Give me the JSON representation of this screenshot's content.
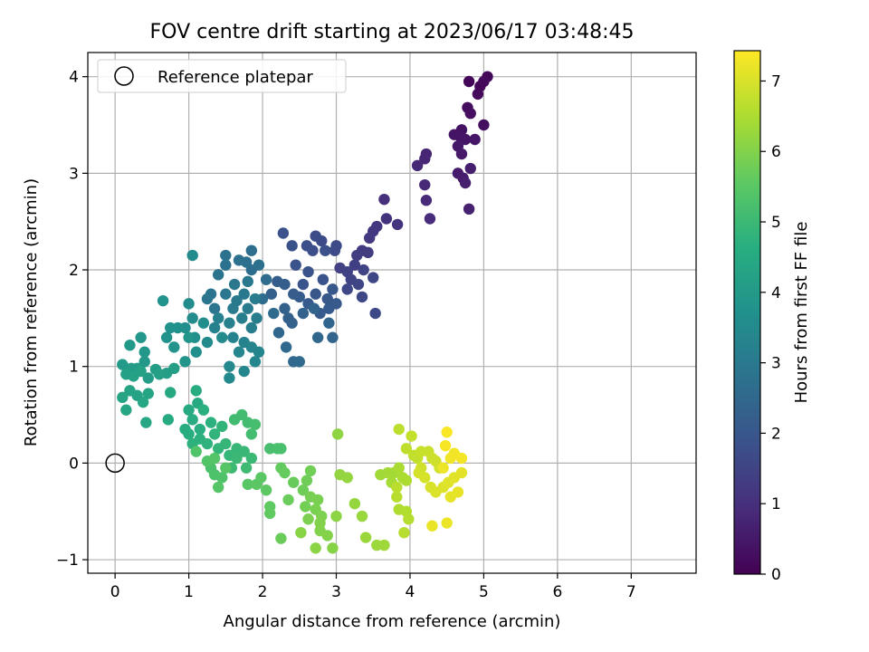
{
  "chart_data": {
    "type": "scatter",
    "title": "FOV centre drift starting at 2023/06/17 03:48:45",
    "xlabel": "Angular distance from reference (arcmin)",
    "ylabel": "Rotation from reference (arcmin)",
    "xlim": [
      -0.37,
      7.88
    ],
    "ylim": [
      -1.14,
      4.25
    ],
    "xticks": [
      0,
      1,
      2,
      3,
      4,
      5,
      6,
      7
    ],
    "yticks": [
      -1,
      0,
      1,
      2,
      3,
      4
    ],
    "grid": true,
    "legend": {
      "location": "top-left",
      "entries": [
        "Reference platepar"
      ]
    },
    "reference_point": {
      "x": 0,
      "y": 0
    },
    "colorbar": {
      "label": "Hours from first FF file",
      "colormap": "viridis",
      "range": [
        0,
        7.43
      ],
      "ticks": [
        0,
        1,
        2,
        3,
        4,
        5,
        6,
        7
      ]
    },
    "points": [
      [
        4.8,
        3.95,
        0.1
      ],
      [
        4.95,
        3.9,
        0.12
      ],
      [
        5.05,
        4.0,
        0.15
      ],
      [
        5.0,
        3.95,
        0.18
      ],
      [
        4.92,
        3.82,
        0.2
      ],
      [
        4.78,
        3.68,
        0.25
      ],
      [
        4.82,
        3.62,
        0.28
      ],
      [
        5.0,
        3.5,
        0.3
      ],
      [
        4.7,
        3.45,
        0.35
      ],
      [
        4.68,
        3.38,
        0.38
      ],
      [
        4.6,
        3.4,
        0.4
      ],
      [
        4.75,
        3.35,
        0.42
      ],
      [
        4.88,
        3.35,
        0.45
      ],
      [
        4.65,
        3.28,
        0.48
      ],
      [
        4.7,
        3.2,
        0.5
      ],
      [
        4.65,
        3.0,
        0.55
      ],
      [
        4.72,
        2.95,
        0.6
      ],
      [
        4.82,
        3.05,
        0.62
      ],
      [
        4.75,
        2.9,
        0.65
      ],
      [
        4.8,
        2.63,
        0.7
      ],
      [
        4.22,
        3.2,
        0.75
      ],
      [
        4.2,
        3.15,
        0.78
      ],
      [
        4.1,
        3.08,
        0.82
      ],
      [
        4.2,
        2.88,
        0.85
      ],
      [
        4.22,
        2.72,
        0.88
      ],
      [
        4.27,
        2.53,
        0.92
      ],
      [
        3.65,
        2.73,
        1.0
      ],
      [
        3.68,
        2.53,
        1.05
      ],
      [
        3.83,
        2.47,
        1.1
      ],
      [
        3.55,
        2.45,
        1.15
      ],
      [
        3.5,
        2.4,
        1.2
      ],
      [
        3.45,
        2.33,
        1.25
      ],
      [
        3.35,
        2.2,
        1.28
      ],
      [
        3.43,
        2.18,
        1.3
      ],
      [
        3.28,
        2.15,
        1.35
      ],
      [
        3.25,
        2.05,
        1.38
      ],
      [
        3.05,
        2.02,
        1.42
      ],
      [
        3.15,
        1.98,
        1.45
      ],
      [
        3.37,
        2.0,
        1.48
      ],
      [
        3.2,
        1.9,
        1.5
      ],
      [
        3.3,
        1.85,
        1.52
      ],
      [
        3.5,
        1.92,
        1.55
      ],
      [
        3.15,
        1.8,
        1.58
      ],
      [
        3.35,
        1.72,
        1.6
      ],
      [
        3.53,
        1.55,
        1.62
      ],
      [
        3.0,
        2.25,
        1.65
      ],
      [
        2.98,
        2.2,
        1.68
      ],
      [
        2.8,
        2.3,
        1.7
      ],
      [
        2.72,
        2.35,
        1.72
      ],
      [
        2.6,
        2.25,
        1.75
      ],
      [
        2.68,
        2.2,
        1.78
      ],
      [
        2.85,
        2.2,
        1.8
      ],
      [
        2.4,
        2.25,
        1.82
      ],
      [
        2.28,
        2.38,
        1.85
      ],
      [
        2.45,
        2.05,
        1.88
      ],
      [
        2.82,
        1.9,
        1.9
      ],
      [
        2.62,
        1.98,
        1.92
      ],
      [
        2.55,
        1.85,
        1.95
      ],
      [
        2.72,
        1.75,
        1.98
      ],
      [
        2.95,
        1.8,
        2.0
      ],
      [
        2.88,
        1.7,
        2.02
      ],
      [
        3.0,
        1.65,
        2.05
      ],
      [
        2.9,
        1.6,
        2.08
      ],
      [
        2.78,
        1.55,
        2.1
      ],
      [
        2.62,
        1.65,
        2.12
      ],
      [
        2.5,
        1.72,
        2.15
      ],
      [
        2.42,
        1.75,
        2.18
      ],
      [
        2.3,
        1.85,
        2.2
      ],
      [
        2.2,
        1.88,
        2.22
      ],
      [
        2.12,
        1.75,
        2.25
      ],
      [
        2.3,
        1.6,
        2.28
      ],
      [
        2.35,
        1.5,
        2.3
      ],
      [
        2.4,
        1.45,
        2.32
      ],
      [
        2.55,
        1.55,
        2.35
      ],
      [
        2.7,
        1.6,
        2.38
      ],
      [
        2.9,
        1.45,
        2.4
      ],
      [
        2.95,
        1.3,
        2.42
      ],
      [
        2.75,
        1.3,
        2.45
      ],
      [
        2.22,
        1.35,
        2.48
      ],
      [
        2.32,
        1.2,
        2.5
      ],
      [
        2.42,
        1.05,
        2.52
      ],
      [
        2.5,
        1.05,
        2.55
      ],
      [
        2.15,
        1.55,
        2.58
      ],
      [
        2.0,
        1.7,
        2.6
      ],
      [
        2.05,
        1.9,
        2.62
      ],
      [
        1.85,
        2.0,
        2.65
      ],
      [
        1.85,
        2.2,
        2.68
      ],
      [
        1.78,
        2.08,
        2.7
      ],
      [
        1.95,
        2.05,
        2.72
      ],
      [
        1.68,
        2.1,
        2.75
      ],
      [
        1.5,
        2.05,
        2.78
      ],
      [
        1.5,
        2.15,
        2.8
      ],
      [
        1.4,
        1.95,
        2.82
      ],
      [
        1.3,
        1.75,
        2.85
      ],
      [
        1.25,
        1.7,
        2.88
      ],
      [
        1.35,
        1.6,
        2.9
      ],
      [
        1.5,
        1.75,
        2.92
      ],
      [
        1.62,
        1.85,
        2.95
      ],
      [
        1.8,
        1.88,
        2.98
      ],
      [
        1.75,
        1.75,
        3.0
      ],
      [
        1.65,
        1.68,
        3.02
      ],
      [
        1.6,
        1.6,
        3.05
      ],
      [
        1.8,
        1.6,
        3.08
      ],
      [
        1.9,
        1.7,
        3.1
      ],
      [
        1.92,
        1.5,
        3.12
      ],
      [
        1.85,
        1.4,
        3.15
      ],
      [
        1.72,
        1.5,
        3.18
      ],
      [
        1.55,
        1.45,
        3.2
      ],
      [
        1.4,
        1.5,
        3.22
      ],
      [
        1.35,
        1.4,
        3.25
      ],
      [
        1.6,
        1.3,
        3.28
      ],
      [
        1.75,
        1.25,
        3.3
      ],
      [
        1.85,
        1.2,
        3.32
      ],
      [
        1.95,
        1.15,
        3.35
      ],
      [
        1.9,
        1.05,
        3.38
      ],
      [
        1.68,
        1.15,
        3.4
      ],
      [
        1.75,
        0.95,
        3.42
      ],
      [
        1.55,
        1.0,
        3.45
      ],
      [
        1.55,
        0.88,
        3.48
      ],
      [
        1.45,
        1.3,
        3.5
      ],
      [
        1.25,
        1.25,
        3.52
      ],
      [
        1.05,
        2.15,
        3.55
      ],
      [
        1.0,
        1.65,
        3.58
      ],
      [
        1.05,
        1.5,
        3.6
      ],
      [
        1.2,
        1.45,
        3.62
      ],
      [
        0.95,
        1.4,
        3.65
      ],
      [
        1.08,
        1.3,
        3.68
      ],
      [
        1.1,
        1.15,
        3.7
      ],
      [
        0.85,
        1.4,
        3.72
      ],
      [
        0.75,
        1.4,
        3.75
      ],
      [
        0.7,
        1.3,
        3.78
      ],
      [
        0.65,
        1.68,
        3.8
      ],
      [
        0.8,
        1.2,
        3.82
      ],
      [
        0.95,
        1.05,
        3.85
      ],
      [
        1.0,
        1.3,
        3.88
      ],
      [
        0.35,
        1.3,
        3.9
      ],
      [
        0.4,
        1.15,
        3.92
      ],
      [
        0.4,
        1.05,
        3.95
      ],
      [
        0.2,
        1.22,
        3.98
      ],
      [
        0.1,
        1.02,
        4.0
      ],
      [
        0.22,
        0.98,
        4.02
      ],
      [
        0.3,
        0.98,
        4.05
      ],
      [
        0.45,
        0.88,
        4.08
      ],
      [
        0.55,
        0.97,
        4.1
      ],
      [
        0.7,
        0.93,
        4.12
      ],
      [
        0.8,
        0.98,
        4.15
      ],
      [
        0.6,
        0.92,
        4.18
      ],
      [
        0.15,
        0.92,
        4.2
      ],
      [
        0.25,
        0.9,
        4.22
      ],
      [
        0.35,
        0.95,
        4.25
      ],
      [
        0.2,
        0.75,
        4.28
      ],
      [
        0.3,
        0.7,
        4.3
      ],
      [
        0.1,
        0.68,
        4.32
      ],
      [
        0.45,
        0.72,
        4.35
      ],
      [
        0.38,
        0.63,
        4.38
      ],
      [
        0.15,
        0.55,
        4.4
      ],
      [
        0.42,
        0.42,
        4.42
      ],
      [
        0.75,
        0.73,
        4.45
      ],
      [
        0.72,
        0.45,
        4.48
      ],
      [
        1.0,
        0.55,
        4.5
      ],
      [
        1.12,
        0.62,
        4.52
      ],
      [
        1.1,
        0.75,
        4.55
      ],
      [
        1.05,
        0.45,
        4.58
      ],
      [
        0.95,
        0.35,
        4.6
      ],
      [
        1.0,
        0.3,
        4.62
      ],
      [
        1.15,
        0.35,
        4.65
      ],
      [
        1.2,
        0.55,
        4.68
      ],
      [
        1.3,
        0.42,
        4.7
      ],
      [
        1.15,
        0.25,
        4.72
      ],
      [
        1.05,
        0.2,
        4.75
      ],
      [
        1.25,
        0.2,
        4.78
      ],
      [
        1.35,
        0.3,
        4.8
      ],
      [
        1.45,
        0.38,
        4.82
      ],
      [
        1.4,
        0.15,
        4.85
      ],
      [
        1.55,
        0.08,
        4.88
      ],
      [
        1.5,
        0.2,
        4.9
      ],
      [
        1.65,
        0.15,
        4.92
      ],
      [
        1.75,
        0.12,
        4.95
      ],
      [
        1.85,
        0.05,
        4.98
      ],
      [
        1.65,
        0.05,
        5.0
      ],
      [
        1.58,
        -0.05,
        5.02
      ],
      [
        1.78,
        -0.05,
        5.05
      ],
      [
        1.62,
        0.45,
        5.08
      ],
      [
        1.72,
        0.5,
        5.1
      ],
      [
        1.8,
        0.42,
        5.12
      ],
      [
        1.85,
        0.3,
        5.15
      ],
      [
        1.9,
        0.4,
        5.18
      ],
      [
        2.1,
        0.15,
        5.2
      ],
      [
        2.2,
        0.15,
        5.22
      ],
      [
        2.25,
        0.15,
        5.25
      ],
      [
        1.3,
        -0.05,
        5.28
      ],
      [
        1.35,
        -0.12,
        5.3
      ],
      [
        1.45,
        -0.15,
        5.32
      ],
      [
        1.1,
        0.12,
        5.35
      ],
      [
        1.25,
        0.02,
        5.38
      ],
      [
        1.35,
        0.05,
        5.4
      ],
      [
        1.4,
        -0.25,
        5.42
      ],
      [
        1.5,
        -0.05,
        5.45
      ],
      [
        1.8,
        -0.22,
        5.48
      ],
      [
        1.92,
        -0.22,
        5.5
      ],
      [
        1.98,
        -0.15,
        5.52
      ],
      [
        2.05,
        -0.28,
        5.55
      ],
      [
        2.1,
        -0.45,
        5.58
      ],
      [
        2.1,
        -0.52,
        5.6
      ],
      [
        2.25,
        -0.05,
        5.62
      ],
      [
        2.3,
        -0.1,
        5.65
      ],
      [
        2.42,
        -0.2,
        5.68
      ],
      [
        2.35,
        -0.38,
        5.7
      ],
      [
        2.25,
        -0.78,
        5.72
      ],
      [
        2.55,
        -0.28,
        5.75
      ],
      [
        2.6,
        -0.18,
        5.78
      ],
      [
        2.65,
        -0.08,
        5.8
      ],
      [
        2.58,
        -0.45,
        5.82
      ],
      [
        2.65,
        -0.35,
        5.85
      ],
      [
        2.75,
        -0.38,
        5.88
      ],
      [
        2.72,
        -0.48,
        5.9
      ],
      [
        2.62,
        -0.58,
        5.92
      ],
      [
        2.8,
        -0.55,
        5.95
      ],
      [
        2.78,
        -0.62,
        5.98
      ],
      [
        2.78,
        -0.7,
        6.0
      ],
      [
        2.88,
        -0.75,
        6.02
      ],
      [
        2.95,
        -0.88,
        6.05
      ],
      [
        2.52,
        -0.72,
        6.08
      ],
      [
        2.72,
        -0.88,
        6.1
      ],
      [
        3.0,
        -0.55,
        6.12
      ],
      [
        3.02,
        0.3,
        6.15
      ],
      [
        3.05,
        -0.12,
        6.18
      ],
      [
        3.15,
        -0.15,
        6.2
      ],
      [
        3.25,
        -0.42,
        6.22
      ],
      [
        3.35,
        -0.55,
        6.25
      ],
      [
        3.4,
        -0.77,
        6.28
      ],
      [
        3.55,
        -0.85,
        6.3
      ],
      [
        3.65,
        -0.85,
        6.32
      ],
      [
        3.6,
        -0.12,
        6.35
      ],
      [
        3.7,
        -0.1,
        6.38
      ],
      [
        3.78,
        -0.1,
        6.4
      ],
      [
        3.75,
        -0.2,
        6.42
      ],
      [
        3.85,
        -0.05,
        6.45
      ],
      [
        3.9,
        -0.15,
        6.48
      ],
      [
        3.95,
        -0.18,
        6.5
      ],
      [
        3.85,
        -0.48,
        6.52
      ],
      [
        3.95,
        -0.5,
        6.55
      ],
      [
        3.98,
        -0.58,
        6.58
      ],
      [
        3.92,
        -0.72,
        6.6
      ],
      [
        3.82,
        -0.35,
        6.62
      ],
      [
        3.82,
        -0.25,
        6.65
      ],
      [
        3.85,
        0.35,
        6.68
      ],
      [
        3.95,
        0.15,
        6.7
      ],
      [
        4.05,
        0.08,
        6.72
      ],
      [
        4.1,
        0.05,
        6.75
      ],
      [
        4.02,
        0.28,
        6.78
      ],
      [
        4.15,
        0.12,
        6.8
      ],
      [
        4.25,
        0.12,
        6.82
      ],
      [
        4.3,
        0.05,
        6.85
      ],
      [
        4.35,
        0.02,
        6.88
      ],
      [
        4.4,
        -0.05,
        6.9
      ],
      [
        4.15,
        -0.05,
        6.92
      ],
      [
        4.12,
        -0.1,
        6.95
      ],
      [
        4.2,
        -0.15,
        6.98
      ],
      [
        4.28,
        -0.25,
        7.0
      ],
      [
        4.35,
        -0.3,
        7.02
      ],
      [
        4.45,
        -0.25,
        7.05
      ],
      [
        4.52,
        -0.2,
        7.08
      ],
      [
        4.6,
        -0.15,
        7.1
      ],
      [
        4.7,
        -0.1,
        7.12
      ],
      [
        4.55,
        -0.35,
        7.15
      ],
      [
        4.65,
        -0.3,
        7.18
      ],
      [
        4.3,
        -0.65,
        7.2
      ],
      [
        4.5,
        -0.62,
        7.22
      ],
      [
        4.45,
        -0.05,
        7.25
      ],
      [
        4.55,
        0.05,
        7.28
      ],
      [
        4.6,
        0.1,
        7.3
      ],
      [
        4.7,
        0.05,
        7.32
      ],
      [
        4.48,
        0.18,
        7.35
      ],
      [
        4.5,
        0.32,
        7.38
      ]
    ]
  }
}
